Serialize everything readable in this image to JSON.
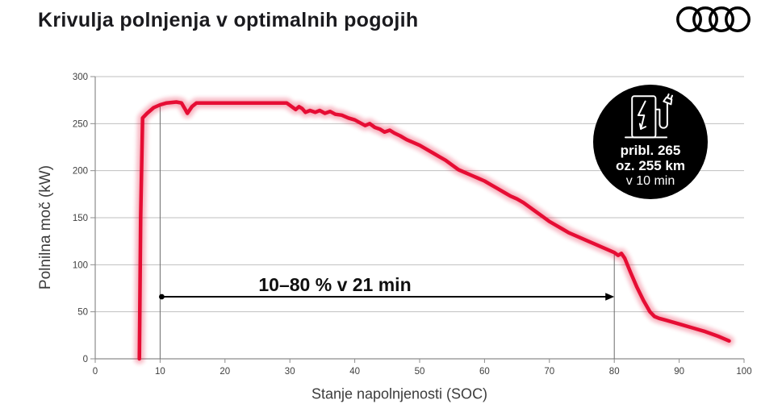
{
  "header": {
    "title": "Krivulja polnjenja v optimalnih pogojih",
    "brand": "audi-rings"
  },
  "chart_data": {
    "type": "line",
    "title": "Krivulja polnjenja v optimalnih pogojih",
    "xlabel": "Stanje napolnjenosti (SOC)",
    "ylabel": "Polnilna moč (kW)",
    "xlim": [
      0,
      100
    ],
    "ylim": [
      0,
      300
    ],
    "xticks": [
      0,
      10,
      20,
      30,
      40,
      50,
      60,
      70,
      80,
      90,
      100
    ],
    "yticks": [
      0,
      50,
      100,
      150,
      200,
      250,
      300
    ],
    "grid": true,
    "legend": "none",
    "line_color": "#e60d34",
    "grid_color": "#bfbfbf",
    "axis_color": "#8c8c8c",
    "tick_label_color": "#404040",
    "series": [
      {
        "name": "Polnilna moč",
        "points": [
          [
            6.8,
            0
          ],
          [
            7,
            150
          ],
          [
            7.3,
            256
          ],
          [
            8,
            261
          ],
          [
            9,
            267
          ],
          [
            10,
            270
          ],
          [
            11,
            272
          ],
          [
            12.5,
            273
          ],
          [
            13.3,
            272
          ],
          [
            13.8,
            266
          ],
          [
            14.2,
            261
          ],
          [
            14.9,
            268
          ],
          [
            15.6,
            272
          ],
          [
            17,
            272
          ],
          [
            20,
            272
          ],
          [
            24,
            272
          ],
          [
            28,
            272
          ],
          [
            29.5,
            272
          ],
          [
            30.3,
            268
          ],
          [
            30.9,
            265
          ],
          [
            31.4,
            268
          ],
          [
            31.9,
            266
          ],
          [
            32.4,
            262
          ],
          [
            33.1,
            264
          ],
          [
            33.9,
            262
          ],
          [
            34.6,
            264
          ],
          [
            35.4,
            261
          ],
          [
            36.2,
            263
          ],
          [
            37,
            260
          ],
          [
            38,
            259
          ],
          [
            39,
            256
          ],
          [
            40,
            254
          ],
          [
            40.8,
            251
          ],
          [
            41.6,
            248
          ],
          [
            42.3,
            250
          ],
          [
            43.1,
            246
          ],
          [
            43.9,
            244
          ],
          [
            44.6,
            241
          ],
          [
            45.4,
            243
          ],
          [
            46.1,
            240
          ],
          [
            47,
            237
          ],
          [
            48,
            233
          ],
          [
            49,
            230
          ],
          [
            50,
            227
          ],
          [
            51,
            223
          ],
          [
            52,
            219
          ],
          [
            53,
            215
          ],
          [
            54,
            211
          ],
          [
            55,
            206
          ],
          [
            56,
            201
          ],
          [
            57,
            198
          ],
          [
            58,
            195
          ],
          [
            59,
            192
          ],
          [
            60,
            189
          ],
          [
            61,
            185
          ],
          [
            62,
            181
          ],
          [
            63,
            177
          ],
          [
            64,
            173
          ],
          [
            65,
            170
          ],
          [
            66,
            166
          ],
          [
            67,
            161
          ],
          [
            68,
            156
          ],
          [
            69,
            151
          ],
          [
            70,
            146
          ],
          [
            71,
            142
          ],
          [
            72,
            138
          ],
          [
            73,
            134
          ],
          [
            74,
            131
          ],
          [
            75,
            128
          ],
          [
            76,
            125
          ],
          [
            77,
            122
          ],
          [
            78,
            119
          ],
          [
            79,
            116
          ],
          [
            80,
            113
          ],
          [
            80.6,
            110
          ],
          [
            81.1,
            112
          ],
          [
            81.6,
            107
          ],
          [
            82.5,
            92
          ],
          [
            83.5,
            76
          ],
          [
            84.5,
            62
          ],
          [
            85.5,
            50
          ],
          [
            86.2,
            45
          ],
          [
            86.9,
            43
          ],
          [
            88,
            41
          ],
          [
            90,
            37
          ],
          [
            92,
            33
          ],
          [
            94,
            29
          ],
          [
            96,
            24
          ],
          [
            97.7,
            19
          ]
        ]
      }
    ],
    "markers": [
      {
        "x": 10,
        "y_top": 270
      },
      {
        "x": 80,
        "y_top": 113
      }
    ],
    "annotation": {
      "text": "10–80 % v 21 min",
      "x_from": 10,
      "x_to": 80,
      "y": 66
    },
    "badge": {
      "icon": "ev-charging-station-icon",
      "lines": [
        "pribl. 265",
        "oz. 255 km",
        "v 10 min"
      ],
      "bg": "#000000",
      "fg": "#ffffff"
    }
  }
}
